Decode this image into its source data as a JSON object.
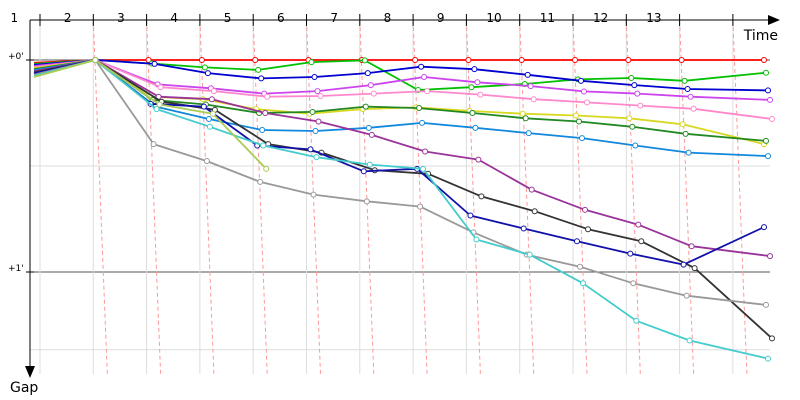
{
  "chart_data": {
    "type": "line",
    "xlabel": "Time",
    "ylabel": "Gap",
    "x_ticks": [
      "1",
      "2",
      "3",
      "4",
      "5",
      "6",
      "7",
      "8",
      "9",
      "10",
      "11",
      "12",
      "13"
    ],
    "y_ticks": [
      {
        "label": "+0'",
        "value": 0
      },
      {
        "label": "+1'",
        "value": 60
      }
    ],
    "ylim": [
      0,
      85
    ],
    "grid": true,
    "series": [
      {
        "color": "#ff0000",
        "points": [
          [
            1,
            0.8
          ],
          [
            2,
            0
          ],
          [
            3,
            0
          ],
          [
            4,
            0
          ],
          [
            5,
            0
          ],
          [
            6,
            0
          ],
          [
            7,
            0
          ],
          [
            8,
            0
          ],
          [
            9,
            0
          ],
          [
            10,
            0
          ],
          [
            11,
            0
          ],
          [
            12,
            0
          ],
          [
            13,
            0
          ],
          [
            14,
            0
          ]
        ]
      },
      {
        "color": "#00c000",
        "points": [
          [
            1,
            1.1
          ],
          [
            2,
            0
          ],
          [
            3,
            1
          ],
          [
            4,
            2.1
          ],
          [
            5,
            2.8
          ],
          [
            6,
            0.6
          ],
          [
            7,
            0.1
          ],
          [
            8,
            8.5
          ],
          [
            9,
            7.7
          ],
          [
            10,
            6.8
          ],
          [
            11,
            5.5
          ],
          [
            12,
            5.1
          ],
          [
            13,
            5.9
          ],
          [
            14,
            3.6
          ]
        ]
      },
      {
        "color": "#0000d0",
        "points": [
          [
            1,
            1.4
          ],
          [
            2,
            0
          ],
          [
            3,
            1.1
          ],
          [
            4,
            3.7
          ],
          [
            5,
            5.2
          ],
          [
            6,
            4.8
          ],
          [
            7,
            3.7
          ],
          [
            8,
            1.9
          ],
          [
            9,
            2.6
          ],
          [
            10,
            4.2
          ],
          [
            11,
            5.9
          ],
          [
            12,
            7.1
          ],
          [
            13,
            8.2
          ],
          [
            14,
            8.6
          ]
        ]
      },
      {
        "color": "#cc44ee",
        "points": [
          [
            1,
            1.7
          ],
          [
            2,
            0
          ],
          [
            3,
            6.9
          ],
          [
            4,
            8
          ],
          [
            5,
            9.5
          ],
          [
            6,
            8.8
          ],
          [
            7,
            7.1
          ],
          [
            8,
            4.8
          ],
          [
            9,
            6.3
          ],
          [
            10,
            7.4
          ],
          [
            11,
            8.9
          ],
          [
            12,
            9.5
          ],
          [
            13,
            10.4
          ],
          [
            14,
            11.3
          ]
        ]
      },
      {
        "color": "#ff88cc",
        "points": [
          [
            1,
            2
          ],
          [
            2,
            0
          ],
          [
            3,
            7.7
          ],
          [
            4,
            8.8
          ],
          [
            5,
            10.4
          ],
          [
            6,
            10.2
          ],
          [
            7,
            9.5
          ],
          [
            8,
            8.8
          ],
          [
            9,
            9.8
          ],
          [
            10,
            11.1
          ],
          [
            11,
            12
          ],
          [
            12,
            12.9
          ],
          [
            13,
            13.8
          ],
          [
            14,
            16.7
          ]
        ]
      },
      {
        "color": "#d8d820",
        "points": [
          [
            1,
            2.3
          ],
          [
            2,
            0
          ],
          [
            3,
            10.4
          ],
          [
            4,
            11.1
          ],
          [
            5,
            13.9
          ],
          [
            6,
            15.2
          ],
          [
            7,
            13.9
          ],
          [
            8,
            13.4
          ],
          [
            9,
            14.4
          ],
          [
            10,
            15.2
          ],
          [
            11,
            15.7
          ],
          [
            12,
            16.5
          ],
          [
            13,
            18.2
          ],
          [
            14,
            23.8
          ]
        ]
      },
      {
        "color": "#228822",
        "points": [
          [
            1,
            2.6
          ],
          [
            2,
            0
          ],
          [
            3,
            11.3
          ],
          [
            4,
            12.6
          ],
          [
            5,
            15
          ],
          [
            6,
            14.7
          ],
          [
            7,
            13.2
          ],
          [
            8,
            13.6
          ],
          [
            9,
            15
          ],
          [
            10,
            16.5
          ],
          [
            11,
            17.4
          ],
          [
            12,
            18.9
          ],
          [
            13,
            20.9
          ],
          [
            14,
            22.9
          ]
        ]
      },
      {
        "color": "#1188dd",
        "points": [
          [
            1,
            2.9
          ],
          [
            2,
            0
          ],
          [
            3,
            13.2
          ],
          [
            4,
            16.7
          ],
          [
            5,
            19.8
          ],
          [
            6,
            20.1
          ],
          [
            7,
            19.2
          ],
          [
            8,
            17.8
          ],
          [
            9,
            19.2
          ],
          [
            10,
            20.7
          ],
          [
            11,
            22.1
          ],
          [
            12,
            24.2
          ],
          [
            13,
            26.2
          ],
          [
            14,
            27.2
          ]
        ]
      },
      {
        "color": "#993399",
        "points": [
          [
            1,
            3.2
          ],
          [
            2,
            0
          ],
          [
            3,
            10.4
          ],
          [
            4,
            11.1
          ],
          [
            5,
            15
          ],
          [
            6,
            17.4
          ],
          [
            7,
            21.2
          ],
          [
            8,
            25.9
          ],
          [
            9,
            28.2
          ],
          [
            10,
            36.7
          ],
          [
            11,
            42.4
          ],
          [
            12,
            46.6
          ],
          [
            13,
            52.7
          ],
          [
            14,
            55.5
          ]
        ]
      },
      {
        "color": "#333333",
        "points": [
          [
            1,
            3.5
          ],
          [
            2,
            0
          ],
          [
            3,
            11.8
          ],
          [
            4,
            14.1
          ],
          [
            5,
            23.8
          ],
          [
            6,
            26.2
          ],
          [
            7,
            31.2
          ],
          [
            8,
            32.2
          ],
          [
            9,
            38.6
          ],
          [
            10,
            42.8
          ],
          [
            11,
            47.9
          ],
          [
            12,
            51.3
          ],
          [
            13,
            58.9
          ],
          [
            14,
            78.8
          ]
        ]
      },
      {
        "color": "#1111aa",
        "points": [
          [
            1,
            3.8
          ],
          [
            2,
            0
          ],
          [
            3,
            12.4
          ],
          [
            4,
            13.2
          ],
          [
            5,
            24.2
          ],
          [
            6,
            25.3
          ],
          [
            7,
            31.5
          ],
          [
            8,
            30.8
          ],
          [
            9,
            44
          ],
          [
            10,
            47.7
          ],
          [
            11,
            51.3
          ],
          [
            12,
            54.8
          ],
          [
            13,
            57.9
          ],
          [
            14,
            47.3
          ]
        ]
      },
      {
        "color": "#999999",
        "points": [
          [
            1,
            4.2
          ],
          [
            2,
            0
          ],
          [
            3,
            23.8
          ],
          [
            4,
            28.6
          ],
          [
            5,
            34.5
          ],
          [
            6,
            38.1
          ],
          [
            7,
            40
          ],
          [
            8,
            41.5
          ],
          [
            9,
            48.8
          ],
          [
            10,
            55.1
          ],
          [
            11,
            58.5
          ],
          [
            12,
            63.2
          ],
          [
            13,
            66.7
          ],
          [
            14,
            69.3
          ]
        ]
      },
      {
        "color": "#44cccc",
        "points": [
          [
            1,
            4.5
          ],
          [
            2,
            0
          ],
          [
            3,
            13.9
          ],
          [
            4,
            18.9
          ],
          [
            5,
            24.2
          ],
          [
            6,
            27.5
          ],
          [
            7,
            29.6
          ],
          [
            8,
            30.8
          ],
          [
            9,
            50.8
          ],
          [
            10,
            55.1
          ],
          [
            11,
            63.2
          ],
          [
            12,
            73.8
          ],
          [
            13,
            79.4
          ],
          [
            14,
            84.5
          ]
        ]
      },
      {
        "color": "#aacc55",
        "points": [
          [
            1,
            4.8
          ],
          [
            2,
            0
          ],
          [
            3,
            12.6
          ],
          [
            4,
            15.2
          ],
          [
            5,
            30.8
          ]
        ]
      }
    ]
  }
}
